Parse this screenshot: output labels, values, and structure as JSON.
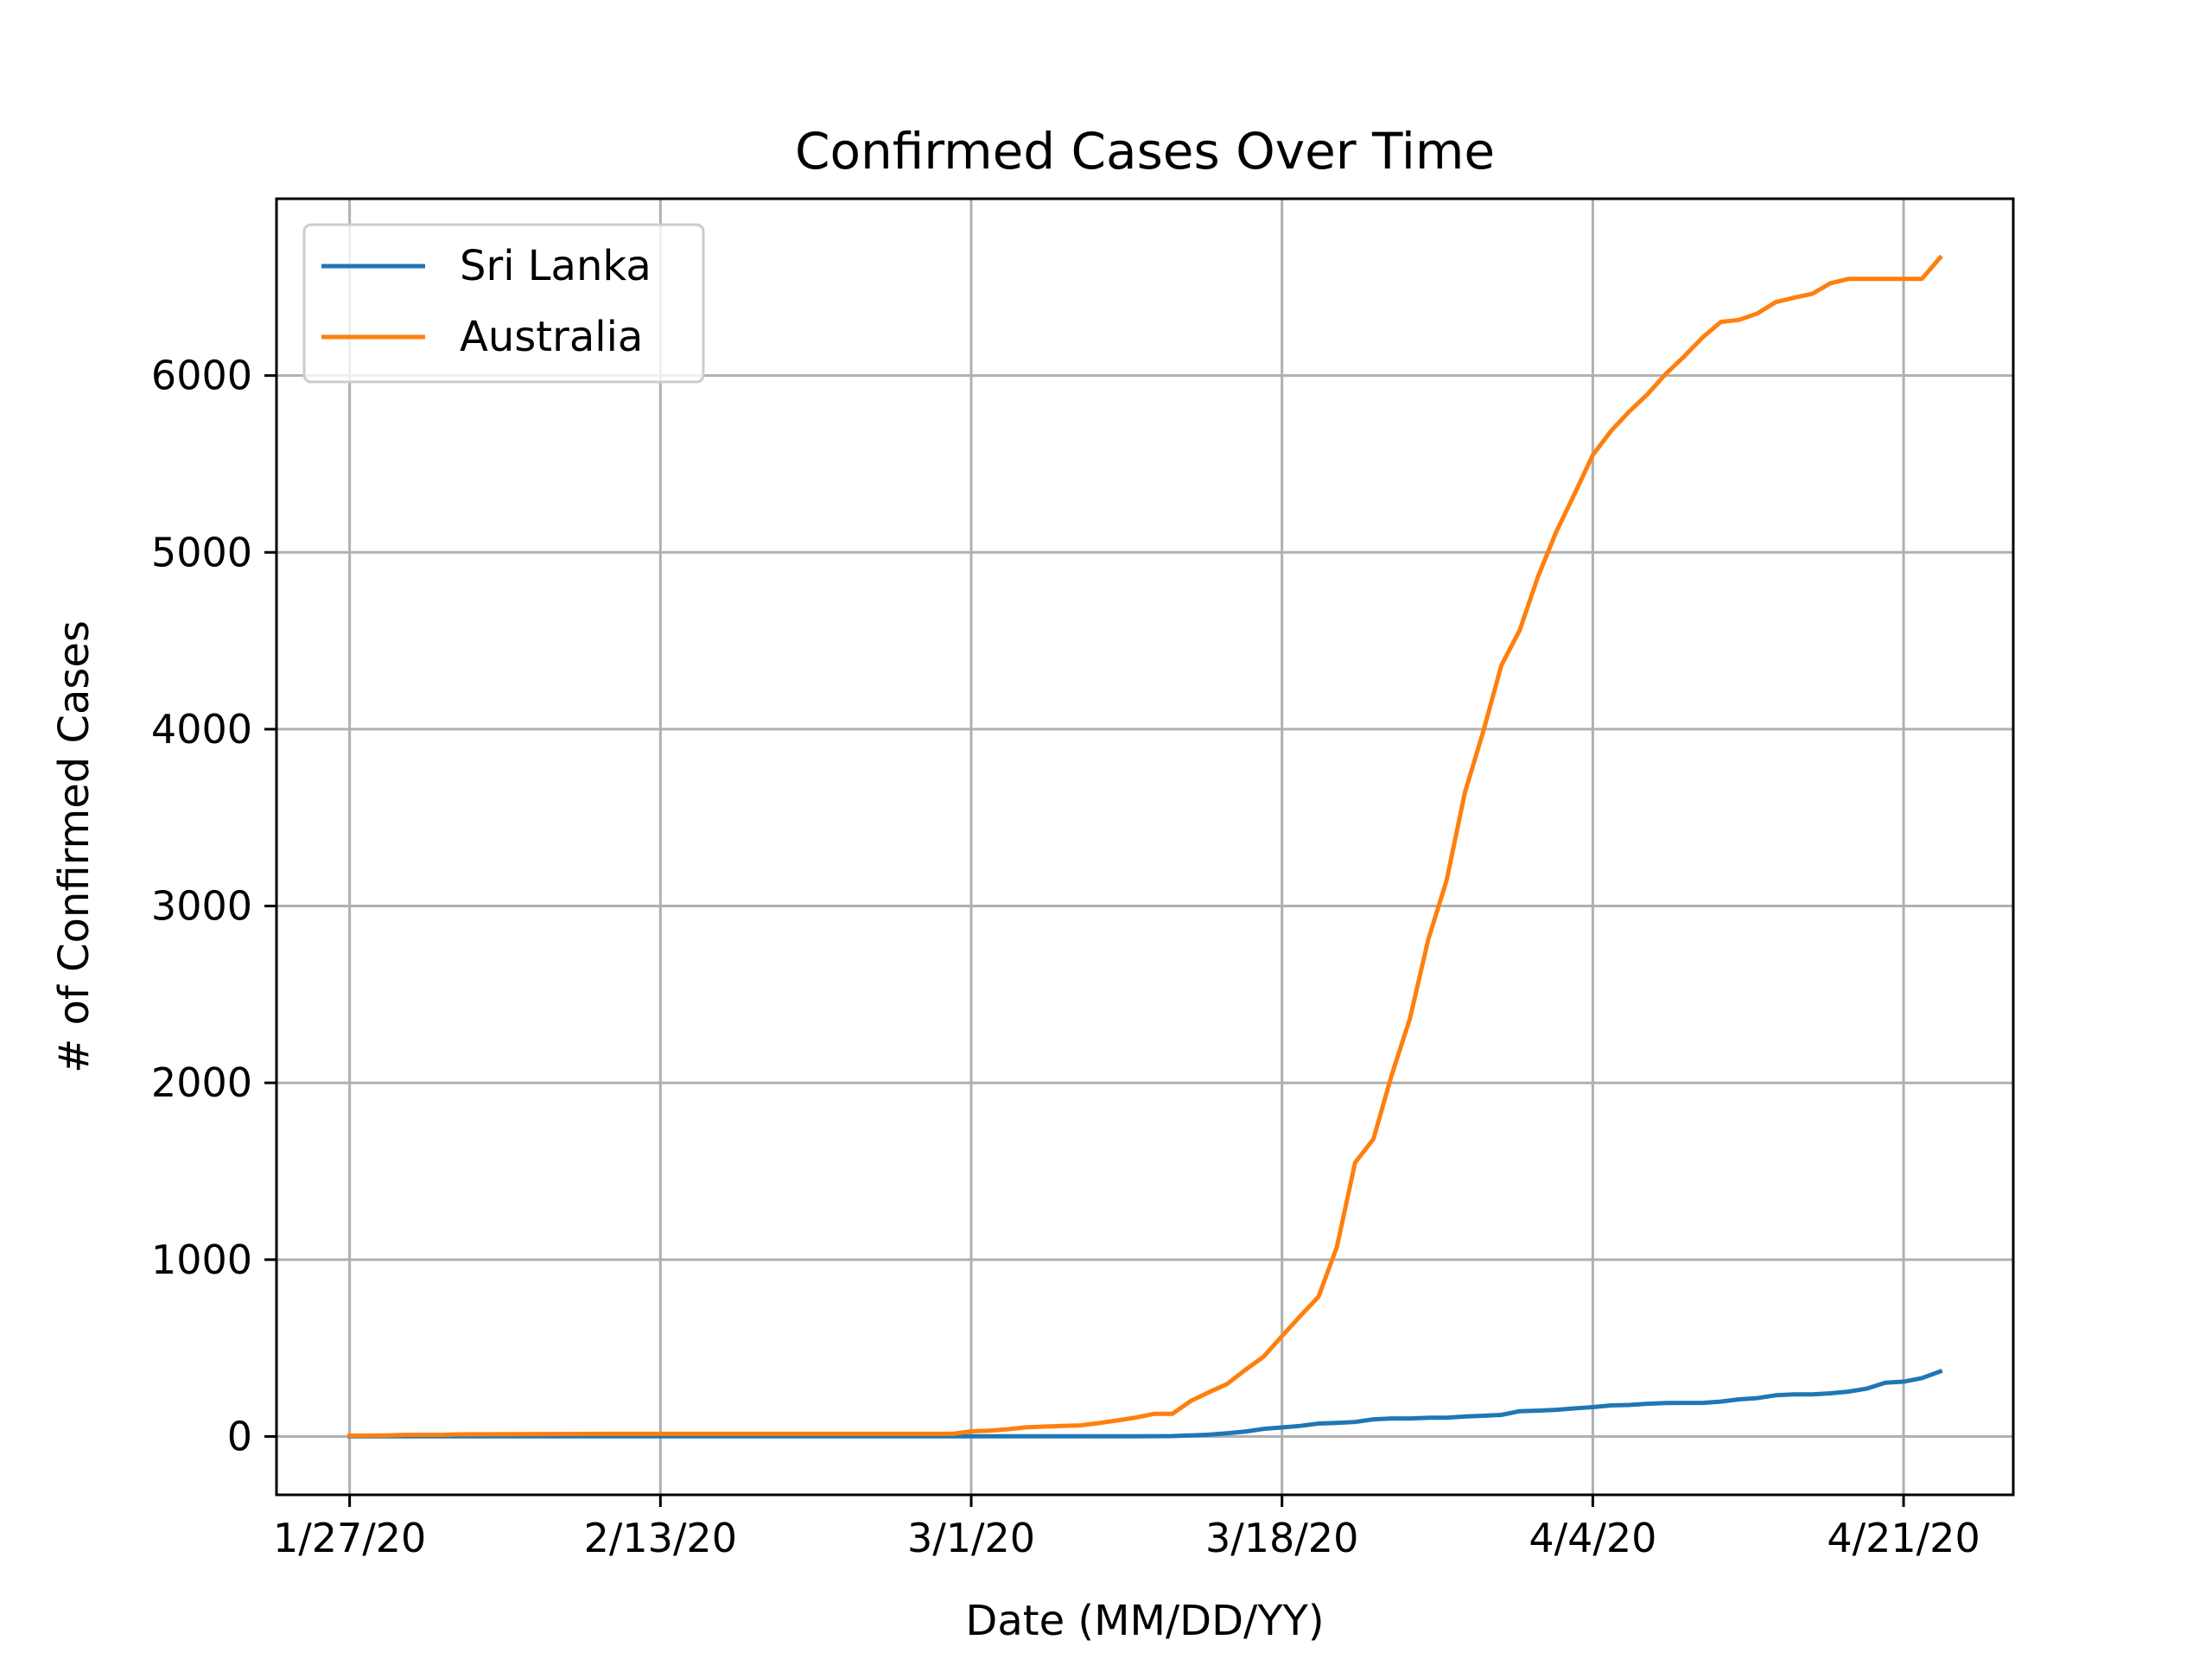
{
  "chart_data": {
    "type": "line",
    "title": "Confirmed Cases Over Time",
    "xlabel": "Date (MM/DD/YY)",
    "ylabel": "# of Confirmed Cases",
    "x_start": "1/27/20",
    "x_ticks": [
      "1/27/20",
      "2/13/20",
      "3/1/20",
      "3/18/20",
      "4/4/20",
      "4/21/20"
    ],
    "y_ticks": [
      0,
      1000,
      2000,
      3000,
      4000,
      5000,
      6000
    ],
    "ylim": [
      -330,
      7000
    ],
    "xlim": [
      "1/23/20",
      "4/27/20"
    ],
    "grid": true,
    "legend_placement": "upper-left",
    "series": [
      {
        "name": "Sri Lanka",
        "color": "#1f77b4",
        "points": [
          [
            "1/27/20",
            1
          ],
          [
            "2/5/20",
            1
          ],
          [
            "2/14/20",
            1
          ],
          [
            "2/23/20",
            1
          ],
          [
            "3/1/20",
            1
          ],
          [
            "3/10/20",
            1
          ],
          [
            "3/12/20",
            2
          ],
          [
            "3/14/20",
            10
          ],
          [
            "3/15/20",
            18
          ],
          [
            "3/16/20",
            28
          ],
          [
            "3/17/20",
            43
          ],
          [
            "3/18/20",
            51
          ],
          [
            "3/19/20",
            60
          ],
          [
            "3/20/20",
            73
          ],
          [
            "3/21/20",
            77
          ],
          [
            "3/22/20",
            82
          ],
          [
            "3/23/20",
            97
          ],
          [
            "3/24/20",
            102
          ],
          [
            "3/25/20",
            102
          ],
          [
            "3/26/20",
            106
          ],
          [
            "3/27/20",
            106
          ],
          [
            "3/28/20",
            113
          ],
          [
            "3/29/20",
            117
          ],
          [
            "3/30/20",
            122
          ],
          [
            "3/31/20",
            143
          ],
          [
            "4/1/20",
            146
          ],
          [
            "4/2/20",
            151
          ],
          [
            "4/3/20",
            159
          ],
          [
            "4/4/20",
            166
          ],
          [
            "4/5/20",
            176
          ],
          [
            "4/6/20",
            178
          ],
          [
            "4/7/20",
            185
          ],
          [
            "4/8/20",
            189
          ],
          [
            "4/9/20",
            190
          ],
          [
            "4/10/20",
            190
          ],
          [
            "4/11/20",
            197
          ],
          [
            "4/12/20",
            210
          ],
          [
            "4/13/20",
            217
          ],
          [
            "4/14/20",
            233
          ],
          [
            "4/15/20",
            238
          ],
          [
            "4/16/20",
            238
          ],
          [
            "4/17/20",
            244
          ],
          [
            "4/18/20",
            254
          ],
          [
            "4/19/20",
            271
          ],
          [
            "4/20/20",
            304
          ],
          [
            "4/21/20",
            310
          ],
          [
            "4/22/20",
            330
          ],
          [
            "4/23/20",
            368
          ]
        ]
      },
      {
        "name": "Australia",
        "color": "#ff7f0e",
        "points": [
          [
            "1/27/20",
            5
          ],
          [
            "1/28/20",
            5
          ],
          [
            "1/29/20",
            6
          ],
          [
            "1/30/20",
            9
          ],
          [
            "2/1/20",
            9
          ],
          [
            "2/2/20",
            12
          ],
          [
            "2/7/20",
            14
          ],
          [
            "2/10/20",
            15
          ],
          [
            "2/29/20",
            15
          ],
          [
            "3/1/20",
            29
          ],
          [
            "3/2/20",
            33
          ],
          [
            "3/3/20",
            41
          ],
          [
            "3/4/20",
            52
          ],
          [
            "3/5/20",
            56
          ],
          [
            "3/6/20",
            60
          ],
          [
            "3/7/20",
            63
          ],
          [
            "3/8/20",
            76
          ],
          [
            "3/9/20",
            91
          ],
          [
            "3/10/20",
            107
          ],
          [
            "3/11/20",
            128
          ],
          [
            "3/12/20",
            128
          ],
          [
            "3/13/20",
            200
          ],
          [
            "3/14/20",
            250
          ],
          [
            "3/15/20",
            297
          ],
          [
            "3/16/20",
            377
          ],
          [
            "3/17/20",
            452
          ],
          [
            "3/18/20",
            568
          ],
          [
            "3/19/20",
            681
          ],
          [
            "3/20/20",
            791
          ],
          [
            "3/21/20",
            1071
          ],
          [
            "3/22/20",
            1549
          ],
          [
            "3/23/20",
            1682
          ],
          [
            "3/24/20",
            2044
          ],
          [
            "3/25/20",
            2364
          ],
          [
            "3/26/20",
            2810
          ],
          [
            "3/27/20",
            3143
          ],
          [
            "3/28/20",
            3640
          ],
          [
            "3/29/20",
            3984
          ],
          [
            "3/30/20",
            4361
          ],
          [
            "3/31/20",
            4559
          ],
          [
            "4/1/20",
            4862
          ],
          [
            "4/2/20",
            5116
          ],
          [
            "4/3/20",
            5330
          ],
          [
            "4/4/20",
            5550
          ],
          [
            "4/5/20",
            5687
          ],
          [
            "4/6/20",
            5797
          ],
          [
            "4/7/20",
            5895
          ],
          [
            "4/8/20",
            6010
          ],
          [
            "4/9/20",
            6108
          ],
          [
            "4/10/20",
            6215
          ],
          [
            "4/11/20",
            6303
          ],
          [
            "4/12/20",
            6315
          ],
          [
            "4/13/20",
            6351
          ],
          [
            "4/14/20",
            6415
          ],
          [
            "4/15/20",
            6440
          ],
          [
            "4/16/20",
            6462
          ],
          [
            "4/17/20",
            6522
          ],
          [
            "4/18/20",
            6547
          ],
          [
            "4/19/20",
            6547
          ],
          [
            "4/20/20",
            6547
          ],
          [
            "4/21/20",
            6547
          ],
          [
            "4/22/20",
            6547
          ],
          [
            "4/23/20",
            6667
          ]
        ]
      }
    ]
  }
}
